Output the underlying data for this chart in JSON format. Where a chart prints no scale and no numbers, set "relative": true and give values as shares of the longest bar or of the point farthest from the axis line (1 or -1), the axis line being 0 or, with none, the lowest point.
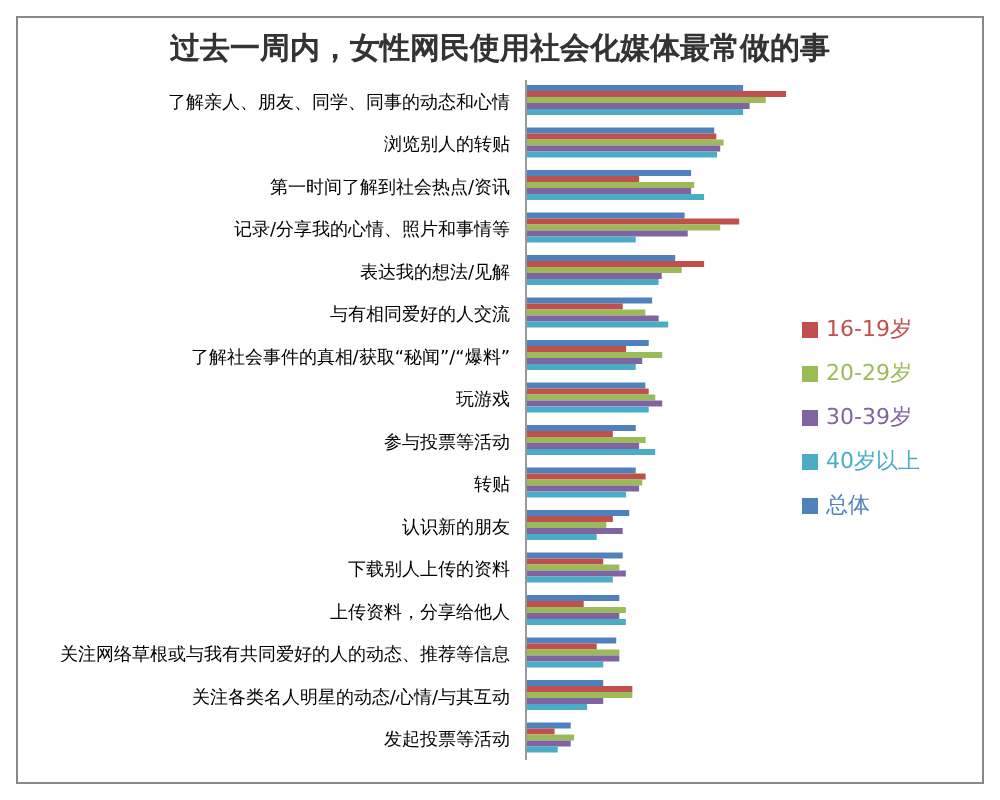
{
  "chart_data": {
    "type": "bar",
    "orientation": "horizontal",
    "relative": true,
    "title": "过去一周内，女性网民使用社会化媒体最常做的事",
    "categories": [
      "了解亲人、朋友、同学、同事的动态和心情",
      "浏览别人的转贴",
      "第一时间了解到社会热点/资讯",
      "记录/分享我的心情、照片和事情等",
      "表达我的想法/见解",
      "与有相同爱好的人交流",
      "了解社会事件的真相/获取“秘闻”/“爆料”",
      "玩游戏",
      "参与投票等活动",
      "转贴",
      "认识新的朋友",
      "下载别人上传的资料",
      "上传资料，分享给他人",
      "关注网络草根或与我有共同爱好的人的动态、推荐等信息",
      "关注各类名人明星的动态/心情/与其互动",
      "发起投票等活动"
    ],
    "series": [
      {
        "name": "总体",
        "color": "#4f81bd",
        "values": [
          0.835,
          0.724,
          0.635,
          0.61,
          0.574,
          0.485,
          0.472,
          0.459,
          0.422,
          0.422,
          0.397,
          0.372,
          0.359,
          0.347,
          0.297,
          0.172
        ]
      },
      {
        "name": "16-19岁",
        "color": "#c0504d",
        "values": [
          1,
          0.732,
          0.435,
          0.82,
          0.685,
          0.372,
          0.385,
          0.472,
          0.334,
          0.46,
          0.334,
          0.297,
          0.222,
          0.272,
          0.409,
          0.11
        ]
      },
      {
        "name": "20-29岁",
        "color": "#9bbb59",
        "values": [
          0.922,
          0.76,
          0.647,
          0.747,
          0.599,
          0.459,
          0.524,
          0.497,
          0.46,
          0.447,
          0.309,
          0.359,
          0.384,
          0.359,
          0.409,
          0.185
        ]
      },
      {
        "name": "30-39岁",
        "color": "#8064a2",
        "values": [
          0.86,
          0.747,
          0.635,
          0.622,
          0.522,
          0.51,
          0.447,
          0.524,
          0.435,
          0.435,
          0.372,
          0.384,
          0.359,
          0.359,
          0.297,
          0.172
        ]
      },
      {
        "name": "40岁以上",
        "color": "#4bacc6",
        "values": [
          0.835,
          0.735,
          0.685,
          0.422,
          0.51,
          0.547,
          0.422,
          0.472,
          0.497,
          0.385,
          0.272,
          0.334,
          0.384,
          0.297,
          0.235,
          0.122
        ]
      }
    ],
    "legend": "right"
  }
}
